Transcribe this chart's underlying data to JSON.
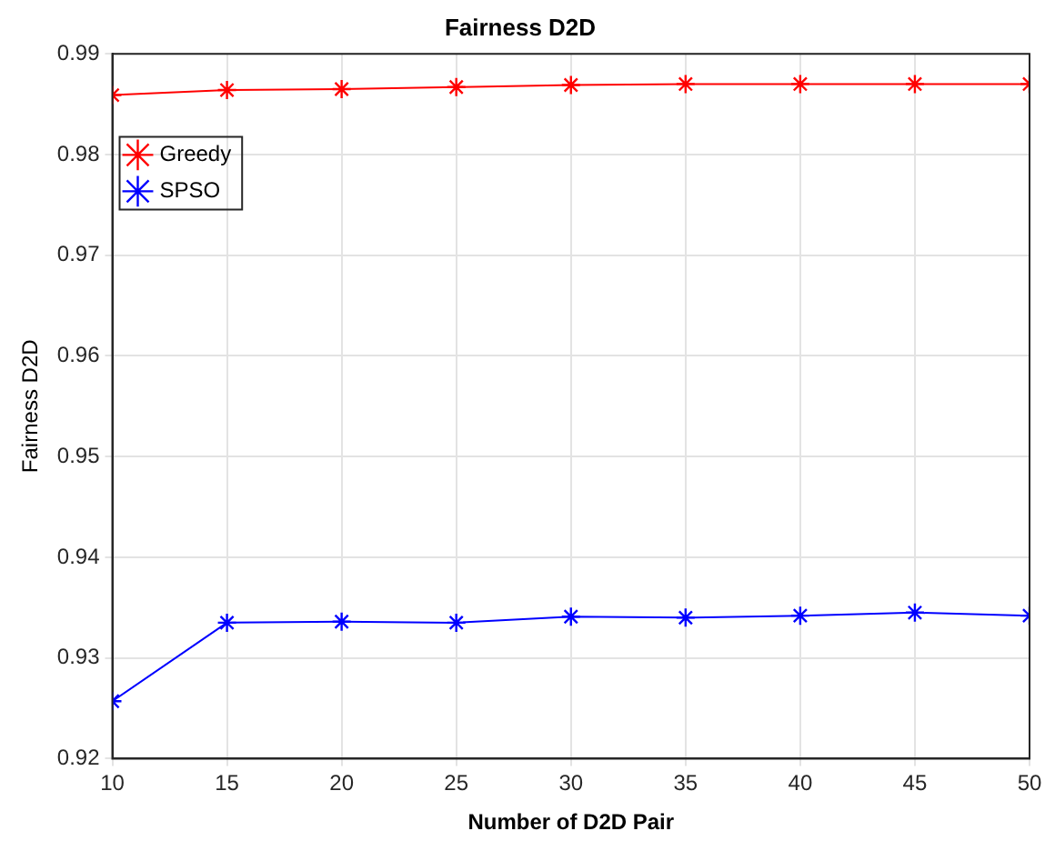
{
  "chart_data": {
    "type": "line",
    "title": "Fairness D2D",
    "xlabel": "Number of D2D Pair",
    "ylabel": "Fairness D2D",
    "x": [
      10,
      15,
      20,
      25,
      30,
      35,
      40,
      45,
      50
    ],
    "series": [
      {
        "name": "Greedy",
        "color": "#ff0000",
        "values": [
          0.9859,
          0.9864,
          0.9865,
          0.9867,
          0.9869,
          0.987,
          0.987,
          0.987,
          0.987
        ]
      },
      {
        "name": "SPSO",
        "color": "#0000ff",
        "values": [
          0.9257,
          0.9335,
          0.9336,
          0.9335,
          0.9341,
          0.934,
          0.9342,
          0.9345,
          0.9342
        ]
      }
    ],
    "xlim": [
      10,
      50
    ],
    "xticks": [
      10,
      15,
      20,
      25,
      30,
      35,
      40,
      45,
      50
    ],
    "ylim": [
      0.92,
      0.99
    ],
    "yticks": [
      0.92,
      0.93,
      0.94,
      0.95,
      0.96,
      0.97,
      0.98,
      0.99
    ],
    "grid": true,
    "legend": "top left",
    "marker": "cross",
    "line_style": "solid"
  }
}
